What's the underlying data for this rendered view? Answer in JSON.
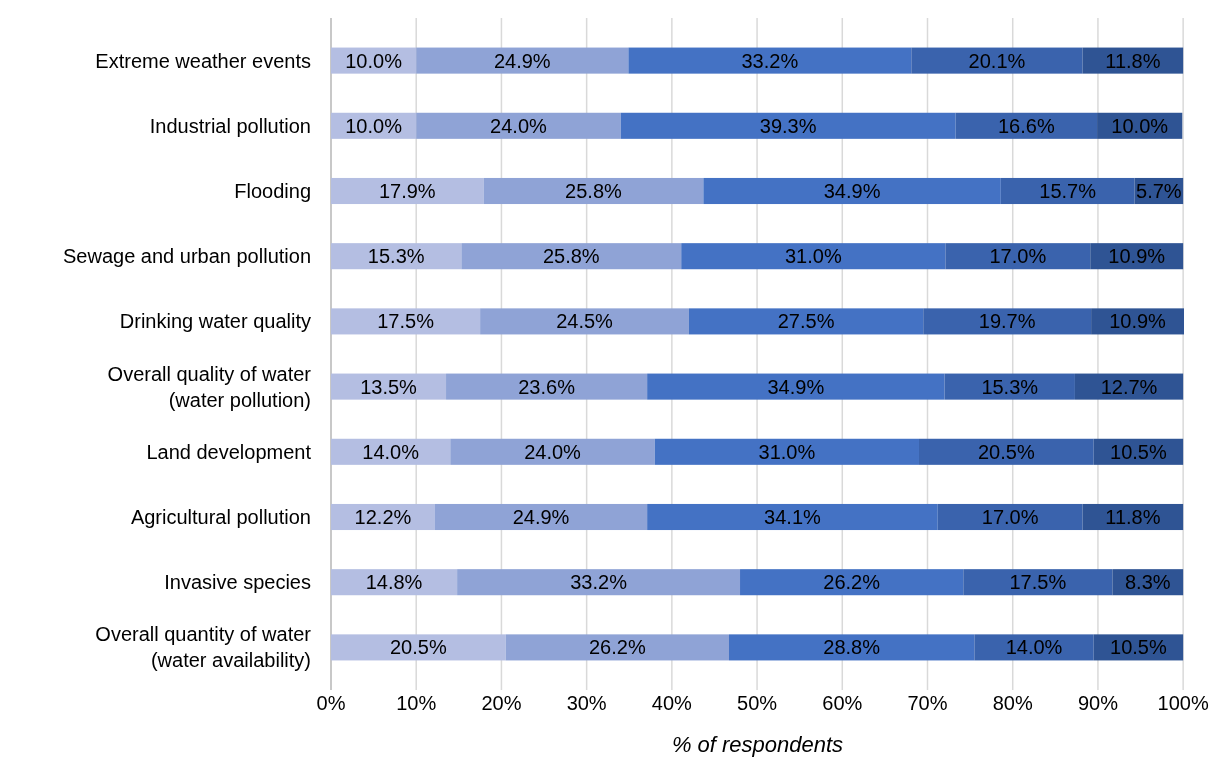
{
  "chart_data": {
    "type": "bar",
    "orientation": "horizontal",
    "stacked": true,
    "xlabel": "% of respondents",
    "categories": [
      "Extreme weather events",
      "Industrial pollution",
      "Flooding",
      "Sewage and urban pollution",
      "Drinking water quality",
      "Overall quality of water\n(water pollution)",
      "Land development",
      "Agricultural pollution",
      "Invasive species",
      "Overall quantity of water\n(water availability)"
    ],
    "series": [
      {
        "color": "#b4bee2",
        "values": [
          10.0,
          10.0,
          17.9,
          15.3,
          17.5,
          13.5,
          14.0,
          12.2,
          14.8,
          20.5
        ],
        "value_labels": [
          "10.0%",
          "10.0%",
          "17.9%",
          "15.3%",
          "17.5%",
          "13.5%",
          "14.0%",
          "12.2%",
          "14.8%",
          "20.5%"
        ]
      },
      {
        "color": "#8fa3d6",
        "values": [
          24.9,
          24.0,
          25.8,
          25.8,
          24.5,
          23.6,
          24.0,
          24.9,
          33.2,
          26.2
        ],
        "value_labels": [
          "24.9%",
          "24.0%",
          "25.8%",
          "25.8%",
          "24.5%",
          "23.6%",
          "24.0%",
          "24.9%",
          "33.2%",
          "26.2%"
        ]
      },
      {
        "color": "#4472c4",
        "values": [
          33.2,
          39.3,
          34.9,
          31.0,
          27.5,
          34.9,
          31.0,
          34.1,
          26.2,
          28.8
        ],
        "value_labels": [
          "33.2%",
          "39.3%",
          "34.9%",
          "31.0%",
          "27.5%",
          "34.9%",
          "31.0%",
          "34.1%",
          "26.2%",
          "28.8%"
        ]
      },
      {
        "color": "#3a63ad",
        "values": [
          20.1,
          16.6,
          15.7,
          17.0,
          19.7,
          15.3,
          20.5,
          17.0,
          17.5,
          14.0
        ],
        "value_labels": [
          "20.1%",
          "16.6%",
          "15.7%",
          "17.0%",
          "19.7%",
          "15.3%",
          "20.5%",
          "17.0%",
          "17.5%",
          "14.0%"
        ]
      },
      {
        "color": "#2f5494",
        "values": [
          11.8,
          10.0,
          5.7,
          10.9,
          10.9,
          12.7,
          10.5,
          11.8,
          8.3,
          10.5
        ],
        "value_labels": [
          "11.8%",
          "10.0%",
          "5.7%",
          "10.9%",
          "10.9%",
          "12.7%",
          "10.5%",
          "11.8%",
          "8.3%",
          "10.5%"
        ]
      }
    ],
    "xlim": [
      0,
      100.1
    ],
    "xticks": [
      {
        "value": 0,
        "label": "0%"
      },
      {
        "value": 10,
        "label": "10%"
      },
      {
        "value": 20,
        "label": "20%"
      },
      {
        "value": 30,
        "label": "30%"
      },
      {
        "value": 40,
        "label": "40%"
      },
      {
        "value": 50,
        "label": "50%"
      },
      {
        "value": 60,
        "label": "60%"
      },
      {
        "value": 70,
        "label": "70%"
      },
      {
        "value": 80,
        "label": "80%"
      },
      {
        "value": 90,
        "label": "90%"
      },
      {
        "value": 100,
        "label": "100%"
      }
    ],
    "grid": "x"
  }
}
